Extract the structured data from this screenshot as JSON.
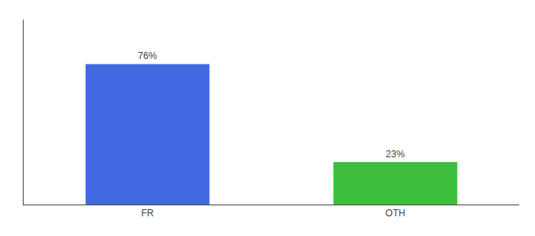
{
  "chart_data": {
    "type": "bar",
    "categories": [
      "FR",
      "OTH"
    ],
    "values": [
      76,
      23
    ],
    "value_labels": [
      "76%",
      "23%"
    ],
    "colors": [
      "#4169E1",
      "#3DBF3D"
    ],
    "ylim": [
      0,
      100
    ],
    "yticks": [],
    "grid": false,
    "data_labels": true,
    "tick_labels": "x"
  }
}
